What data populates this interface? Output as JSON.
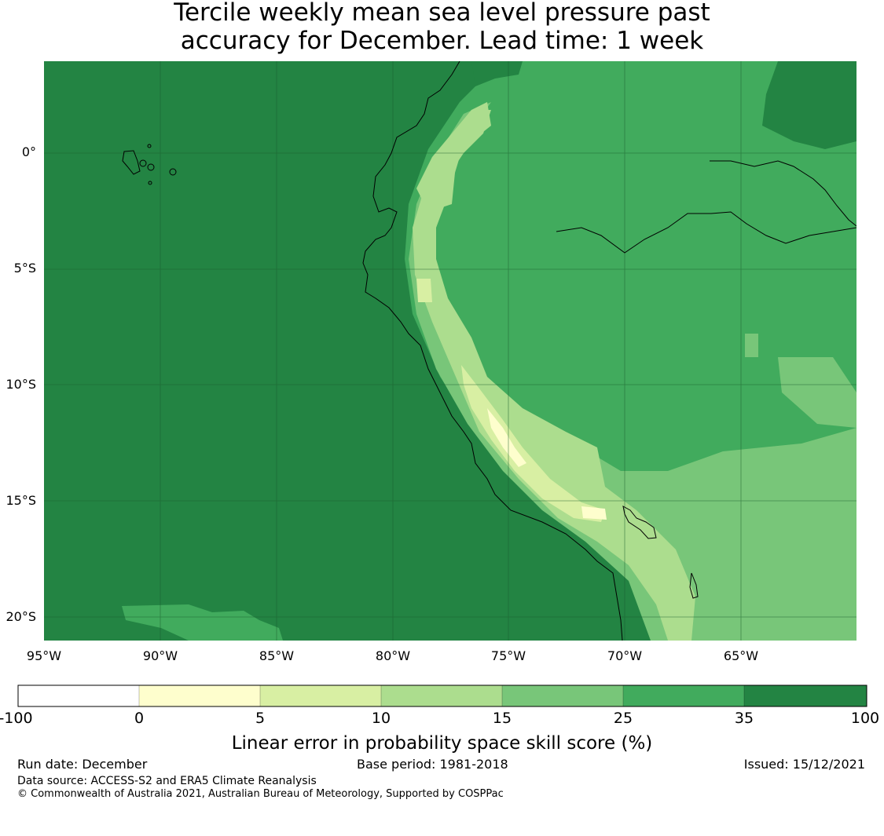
{
  "title": {
    "line1": "Tercile weekly mean sea level pressure past",
    "line2": "accuracy for December. Lead time: 1 week"
  },
  "map": {
    "lat_labels": [
      "0°",
      "5°S",
      "10°S",
      "15°S",
      "20°S"
    ],
    "lon_labels": [
      "95°W",
      "90°W",
      "85°W",
      "80°W",
      "75°W",
      "70°W",
      "65°W"
    ],
    "features": [
      "coastline",
      "galapagos-islands",
      "amazon-river",
      "lake-titicaca"
    ]
  },
  "colorbar": {
    "ticks": [
      "-100",
      "0",
      "5",
      "10",
      "15",
      "25",
      "35",
      "100"
    ],
    "colors": [
      "#ffffff",
      "#fefecd",
      "#d8efa3",
      "#acdd8e",
      "#78c679",
      "#41ab5d",
      "#238443"
    ],
    "label": "Linear error in probability space skill score (%)"
  },
  "footer": {
    "run_date": "Run date: December",
    "base_period": "Base period: 1981-2018",
    "issued": "Issued: 15/12/2021",
    "data_source": "Data source: ACCESS-S2 and ERA5 Climate Reanalysis",
    "copyright": "© Commonwealth of Australia 2021, Australian Bureau of Meteorology, Supported by COSPPac"
  }
}
